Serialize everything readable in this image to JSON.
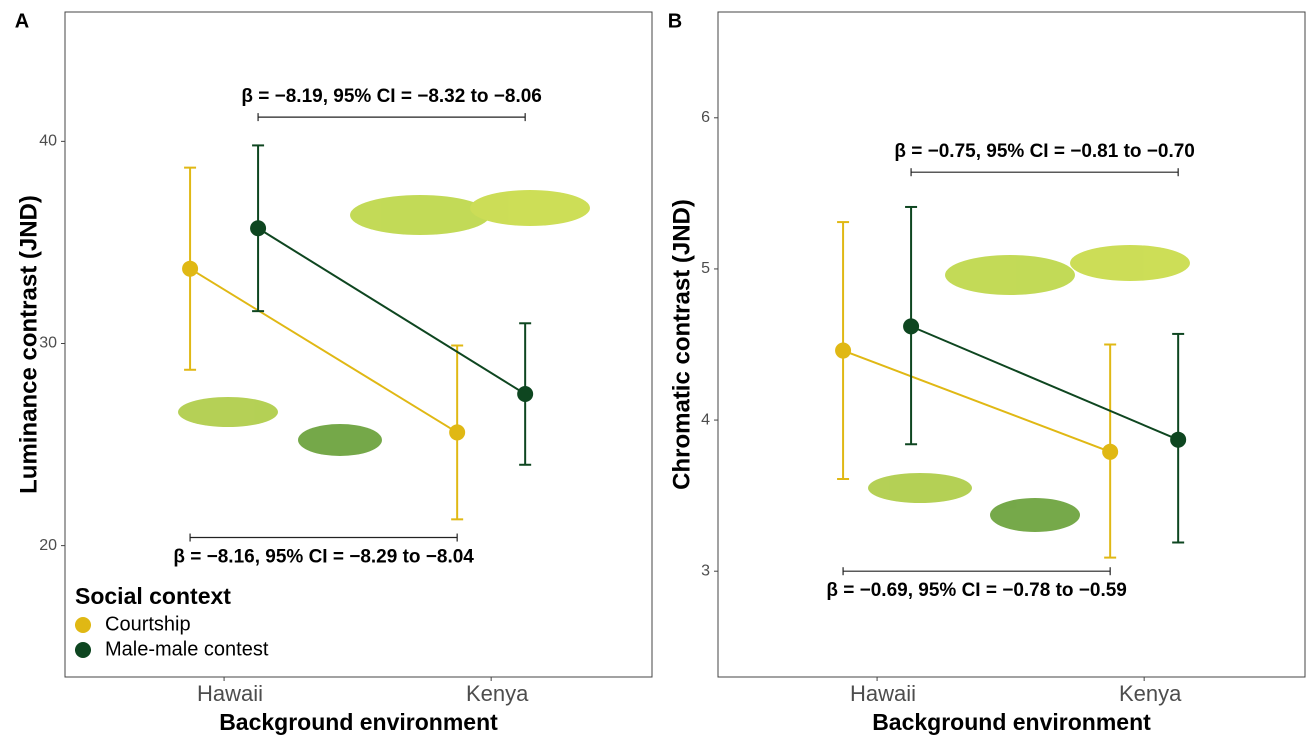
{
  "chart_data": [
    {
      "type": "pointrange",
      "panel_label": "A",
      "x_label": "Background environment",
      "y_label": "Luminance contrast (JND)",
      "categories": [
        "Hawaii",
        "Kenya"
      ],
      "legend_title": "Social context",
      "series": [
        {
          "name": "Courtship",
          "color": "#e0b814",
          "values": [
            33.7,
            25.6
          ],
          "ci_low": [
            28.7,
            21.3
          ],
          "ci_high": [
            38.7,
            29.9
          ]
        },
        {
          "name": "Male-male contest",
          "color": "#0e4620",
          "values": [
            35.7,
            27.5
          ],
          "ci_low": [
            31.6,
            24.0
          ],
          "ci_high": [
            39.8,
            31.0
          ]
        }
      ],
      "annotations": [
        {
          "text": "β = −8.19, 95% CI = −8.32 to −8.06",
          "y": 41.2
        },
        {
          "text": "β = −8.16, 95% CI = −8.29 to −8.04",
          "y": 20.4
        }
      ],
      "ylim": [
        13.5,
        46.4
      ],
      "yticks": [
        20,
        30,
        40
      ]
    },
    {
      "type": "pointrange",
      "panel_label": "B",
      "x_label": "Background environment",
      "y_label": "Chromatic contrast (JND)",
      "categories": [
        "Hawaii",
        "Kenya"
      ],
      "series": [
        {
          "color": "#e0b814",
          "values": [
            4.46,
            3.79
          ],
          "ci_low": [
            3.61,
            3.09
          ],
          "ci_high": [
            5.31,
            4.5
          ]
        },
        {
          "color": "#0e4620",
          "values": [
            4.62,
            3.87
          ],
          "ci_low": [
            3.84,
            3.19
          ],
          "ci_high": [
            5.41,
            4.57
          ]
        }
      ],
      "annotations": [
        {
          "text": "β = −0.75, 95% CI = −0.81 to −0.70",
          "y": 5.64
        },
        {
          "text": "β = −0.69, 95% CI = −0.78 to −0.59",
          "y": 3.0
        }
      ],
      "ylim": [
        2.3,
        6.7
      ],
      "yticks": [
        3,
        4,
        5,
        6
      ]
    }
  ]
}
